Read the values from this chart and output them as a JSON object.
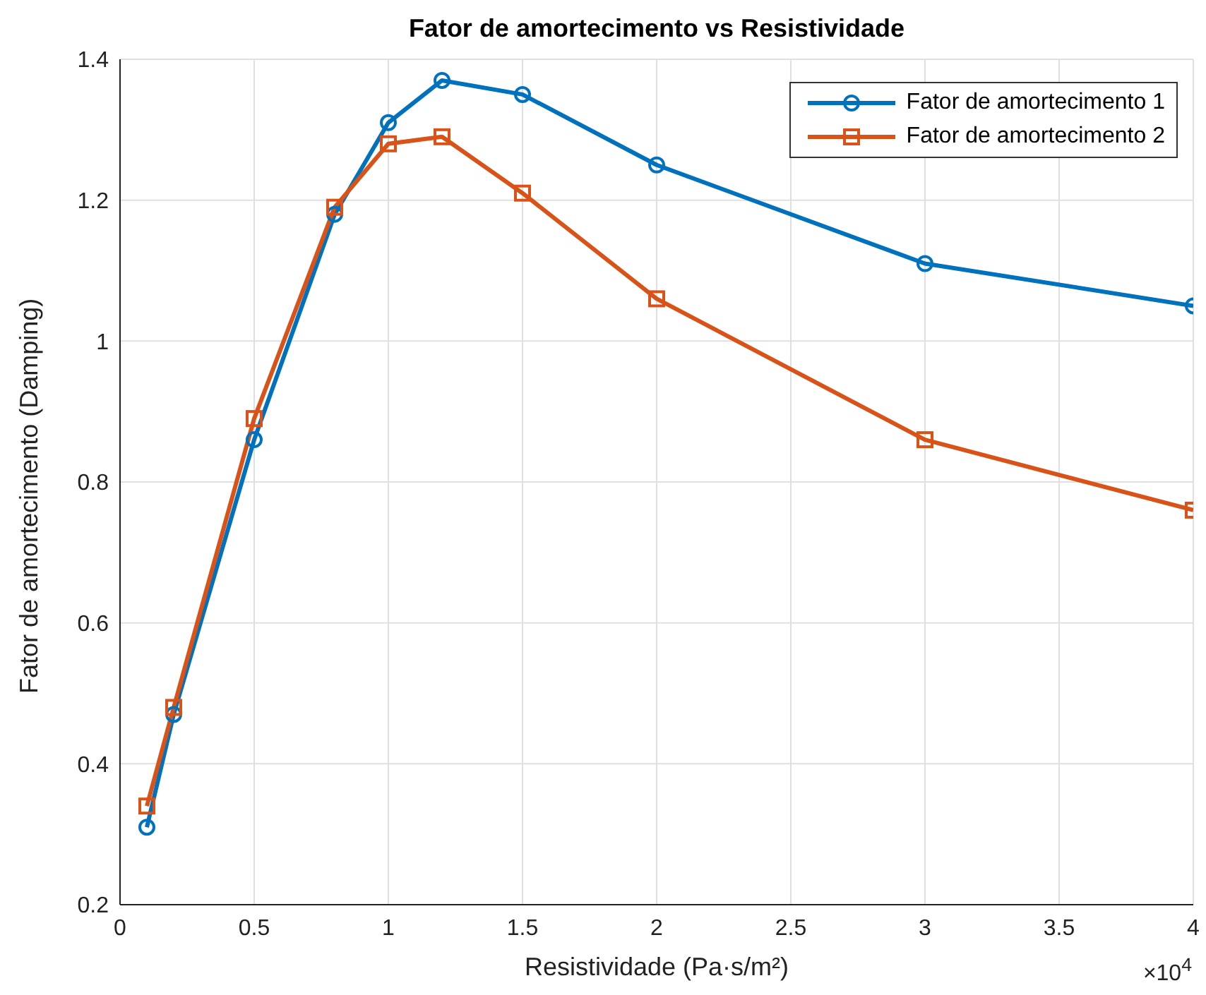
{
  "chart_data": {
    "type": "line",
    "title": "Fator de amortecimento vs Resistividade",
    "xlabel": "Resistividade (Pa·s/m²)",
    "ylabel": "Fator de amortecimento (Damping)",
    "annotations": [
      "×10$^{4}$"
    ],
    "x": [
      0.1,
      0.2,
      0.5,
      0.8,
      1,
      1.2,
      1.5,
      2,
      3,
      4
    ],
    "series": [
      {
        "name": "Fator de amortecimento 1",
        "color": "#0072bd",
        "marker": "circle",
        "values": [
          0.31,
          0.47,
          0.86,
          1.18,
          1.31,
          1.37,
          1.35,
          1.25,
          1.11,
          1.05
        ]
      },
      {
        "name": "Fator de amortecimento 2",
        "color": "#d95319",
        "marker": "square",
        "values": [
          0.34,
          0.48,
          0.89,
          1.19,
          1.28,
          1.29,
          1.21,
          1.06,
          0.86,
          0.76
        ]
      }
    ],
    "xlim": [
      0,
      4
    ],
    "xticks": [
      0,
      0.5,
      1,
      1.5,
      2,
      2.5,
      3,
      3.5,
      4
    ],
    "ylim": [
      0.2,
      1.4
    ],
    "yticks": [
      0.2,
      0.4,
      0.6,
      0.8,
      1,
      1.2,
      1.4
    ],
    "grid": true,
    "legend": "top right",
    "line_style": "solid"
  }
}
